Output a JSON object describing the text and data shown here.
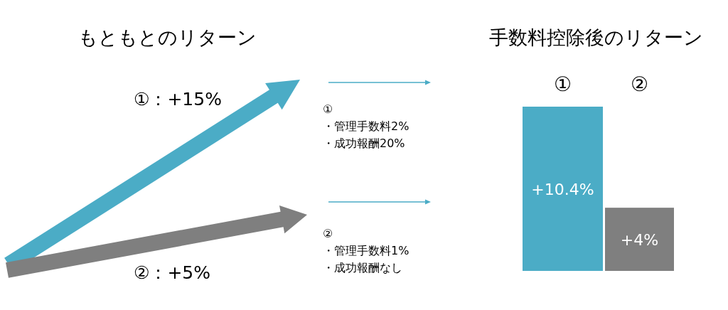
{
  "chart_data": [
    {
      "type": "other",
      "title": "もともとのリターン",
      "annotations": [
        "①：+15%",
        "②：+5%",
        "①",
        "・管理手数料2%",
        "・成功報酬20%",
        "②",
        "・管理手数料1%",
        "・成功報酬なし"
      ]
    },
    {
      "type": "bar",
      "title": "手数料控除後のリターン",
      "categories": [
        "①",
        "②"
      ],
      "values": [
        10.4,
        4
      ],
      "colors": [
        "#4bacc6",
        "#7f7f7f"
      ],
      "value_labels": [
        "+10.4%",
        "+4%"
      ]
    }
  ]
}
